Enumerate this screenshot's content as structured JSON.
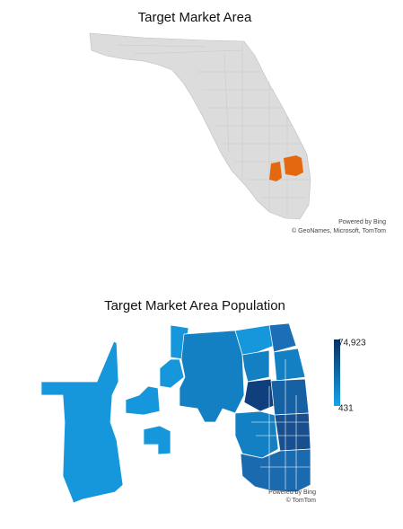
{
  "map1": {
    "title": "Target Market Area",
    "attribution": [
      "Powered by Bing",
      "© GeoNames, Microsoft, TomTom"
    ]
  },
  "map2": {
    "title": "Target Market Area Population",
    "attribution": [
      "Powered by Bing",
      "© TomTom"
    ],
    "legend": {
      "max": {
        "value": 74923,
        "label": "74,923"
      },
      "min": {
        "value": 431,
        "label": "431"
      }
    }
  }
}
